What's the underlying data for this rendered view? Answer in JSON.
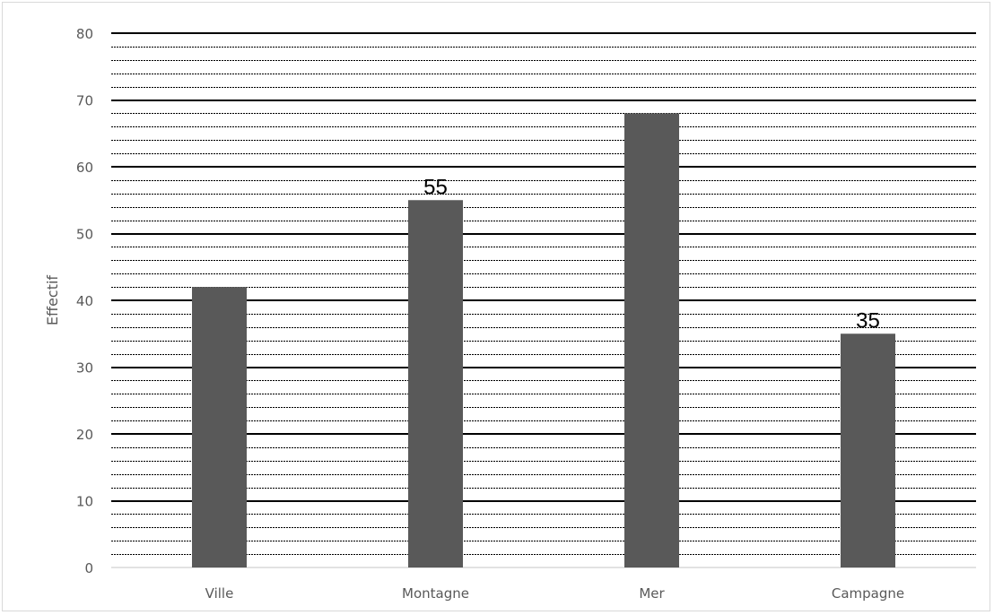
{
  "chart_data": {
    "type": "bar",
    "categories": [
      "Ville",
      "Montagne",
      "Mer",
      "Campagne"
    ],
    "values": [
      42,
      55,
      68,
      35
    ],
    "data_labels": [
      "",
      "55",
      "",
      "35"
    ],
    "title": "",
    "xlabel": "",
    "ylabel": "Effectif",
    "ylim": [
      0,
      80
    ],
    "yticks": [
      "0",
      "10",
      "20",
      "30",
      "40",
      "50",
      "60",
      "70",
      "80"
    ],
    "grid": {
      "major": true,
      "minor": true,
      "major_step": 10,
      "minor_step": 2
    },
    "legend": "none",
    "colors": {
      "bar": "#595959",
      "major_grid": "#000000",
      "minor_grid": "#000000",
      "axis": "#d9d9d9"
    }
  }
}
